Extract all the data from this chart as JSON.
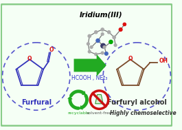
{
  "bg_color": "#f5fff5",
  "border_color": "#88cc88",
  "title_text": "Iridium(III)",
  "arrow_color": "#22aa22",
  "reagent_text": "HCOOH , NEt₃",
  "left_label": "Furfural",
  "right_label": "Furfuryl alcohol",
  "recycle_label": "recyclable",
  "solvent_label": "solvent-free",
  "chemo_label": "Highly chemoselective",
  "furan_color_left": "#3333bb",
  "furan_color_right": "#7a4a2a",
  "oxygen_color": "#dd1111",
  "oh_color": "#dd1111",
  "label_color_left": "#3333bb",
  "label_color_right": "#333333",
  "reagent_color": "#3333cc",
  "recycle_color": "#22aa22",
  "solvent_circle_color": "#cc1111",
  "chemo_color": "#333333",
  "circle_color": "#5555cc"
}
